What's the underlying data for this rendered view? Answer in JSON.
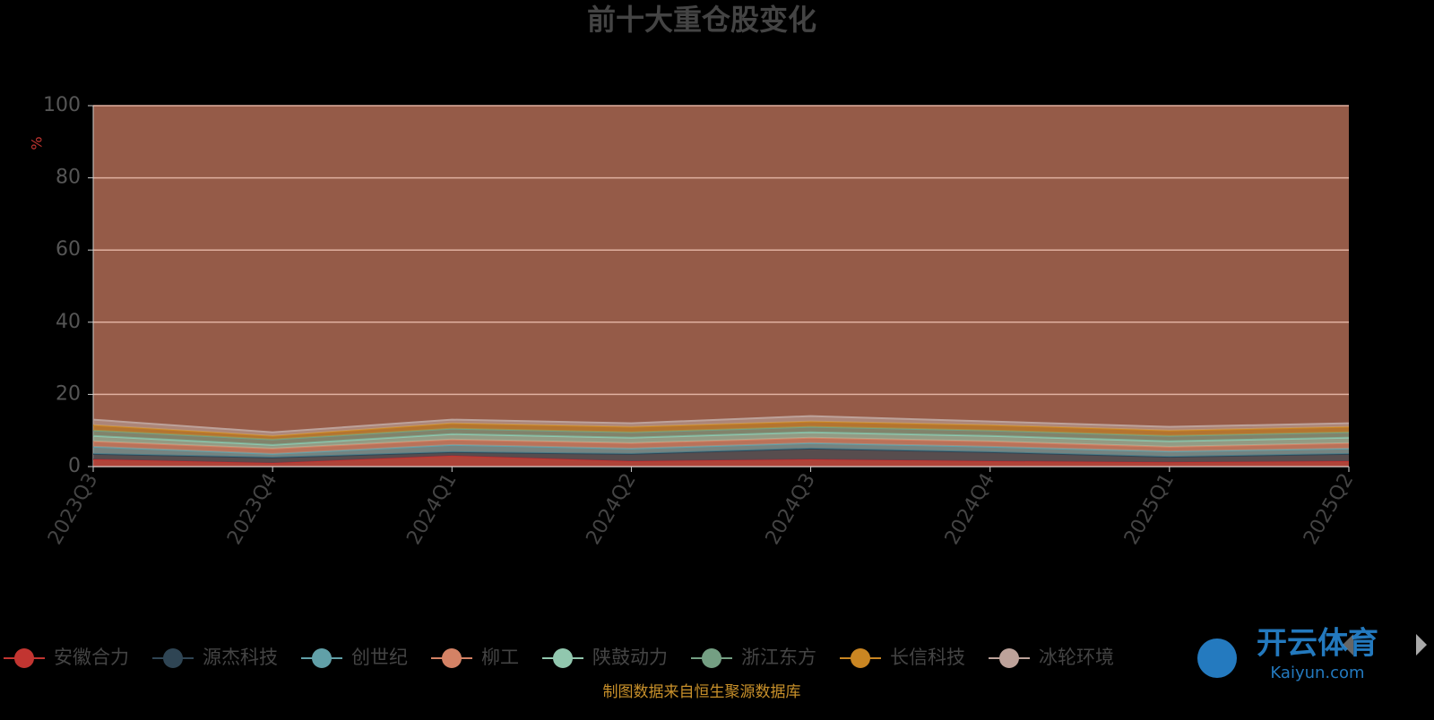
{
  "chart_data": {
    "type": "stacked-area",
    "title": "前十大重仓股变化",
    "y_label": "%",
    "categories": [
      "2023Q3",
      "2023Q4",
      "2024Q1",
      "2024Q2",
      "2024Q3",
      "2024Q4",
      "2025Q1",
      "2025Q2"
    ],
    "ylim": [
      0,
      100
    ],
    "yticks": [
      0,
      20,
      40,
      60,
      80,
      100
    ],
    "grid": true,
    "plot_background": "#955b48",
    "series": [
      {
        "name": "安徽合力",
        "color": "#c23531",
        "values": [
          2,
          1,
          3,
          1.5,
          2,
          1.5,
          1.2,
          1.5
        ]
      },
      {
        "name": "源杰科技",
        "color": "#2f4554",
        "values": [
          1.5,
          1.5,
          1,
          2,
          3,
          2.5,
          1.5,
          2
        ]
      },
      {
        "name": "创世纪",
        "color": "#61a0a8",
        "values": [
          2,
          1,
          2,
          1.5,
          1.5,
          1.5,
          1.5,
          1.5
        ]
      },
      {
        "name": "柳工",
        "color": "#d48265",
        "values": [
          1.5,
          1.5,
          1.5,
          1.5,
          1.5,
          1.5,
          1.3,
          1.5
        ]
      },
      {
        "name": "陕鼓动力",
        "color": "#91c7ae",
        "values": [
          1.5,
          1,
          1.5,
          1.5,
          1.5,
          1.5,
          1.5,
          1.5
        ]
      },
      {
        "name": "浙江东方",
        "color": "#749f83",
        "values": [
          1.5,
          1.5,
          1.5,
          1.5,
          1.5,
          1.5,
          1.5,
          1.5
        ]
      },
      {
        "name": "长信科技",
        "color": "#ca8622",
        "values": [
          1.5,
          1,
          1.5,
          1.5,
          1.5,
          1.5,
          1.5,
          1.5
        ]
      },
      {
        "name": "冰轮环境",
        "color": "#bda29a",
        "values": [
          1.5,
          1,
          1,
          1,
          1.5,
          1,
          1,
          1
        ]
      }
    ],
    "source": "制图数据来自恒生聚源数据库",
    "watermark": "开云体育",
    "watermark_sub": "Kaiyun.com"
  }
}
